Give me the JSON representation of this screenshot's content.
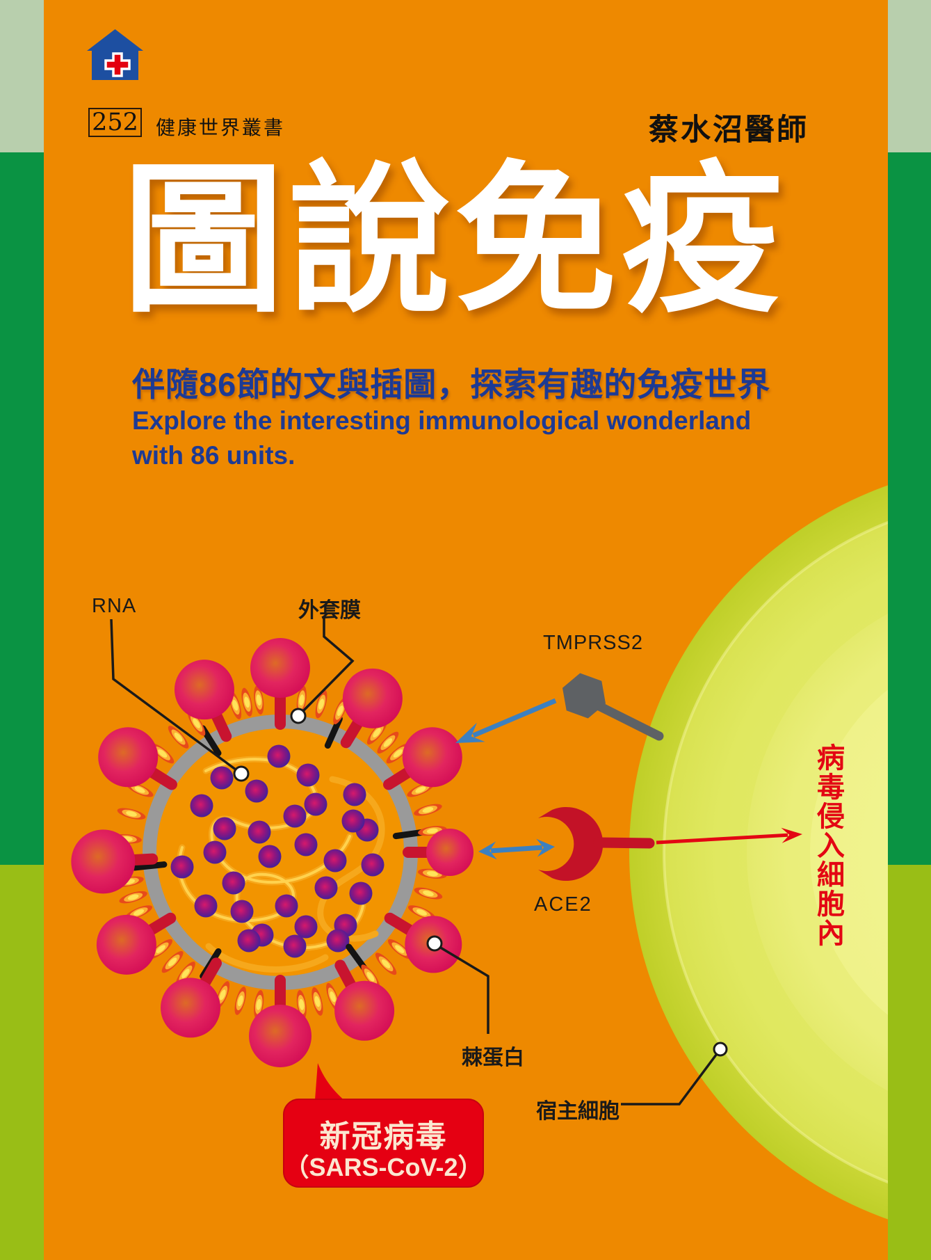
{
  "series_badge": {
    "number": "252",
    "series_name": "健康世界叢書"
  },
  "author": "蔡水沼醫師",
  "title": "圖說免疫",
  "subtitle": {
    "zh": "伴隨86節的文與插圖，探索有趣的免疫世界",
    "en_line1": "Explore the interesting immunological wonderland",
    "en_line2": "with 86 units."
  },
  "diagram": {
    "labels": {
      "rna": "RNA",
      "envelope": "外套膜",
      "tmprss2": "TMPRSS2",
      "ace2": "ACE2",
      "spike_protein": "棘蛋白",
      "host_cell": "宿主細胞",
      "invasion_note": "病毒侵入細胞內"
    },
    "callout": {
      "line1": "新冠病毒",
      "line2": "（SARS-CoV-2）"
    }
  },
  "colors": {
    "background_orange": "#EE8900",
    "strip_pale_green": "#B8CFAD",
    "strip_green": "#0A9343",
    "strip_yellow_green": "#99BE16",
    "title_white": "#FFFFFF",
    "subtitle_blue": "#1D3A94",
    "text_black": "#1A1A1A",
    "accent_red": "#E30613",
    "bubble_red": "#E50012",
    "bubble_text_cream": "#FBE7D0",
    "arrow_blue": "#3C80C0",
    "virus_ring_gray": "#9A9A9A",
    "virus_interior_orange": "#F29400",
    "spike_stem_crimson": "#C8142F",
    "spike_ball_pink": "#D61157",
    "spike_ball_core": "#DD6A26",
    "petal_red": "#E74A1A",
    "petal_gold": "#FBB133",
    "petal_yellow": "#FFE45A",
    "rna_strand_gold": "#F6A81C",
    "nucleocapsid_purple": "#4E1E96",
    "nucleocapsid_core": "#D6196B",
    "tmprss2_gray": "#5E6164",
    "ace2_red": "#C31227",
    "cell_outer_yellow_green": "#C9D534",
    "cell_mid_yellow": "#DFE75F",
    "cell_inner_yellow": "#E9EE79",
    "cell_core_yellow": "#F0F28C",
    "logo_blue": "#1D4FA1",
    "logo_cross_red": "#E3000F"
  }
}
